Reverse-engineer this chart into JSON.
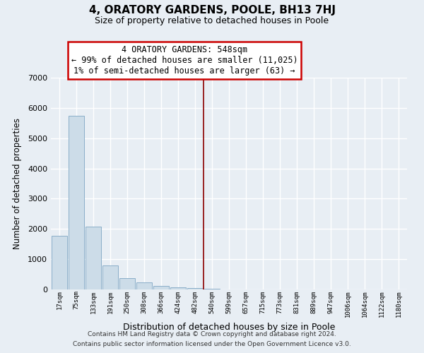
{
  "title": "4, ORATORY GARDENS, POOLE, BH13 7HJ",
  "subtitle": "Size of property relative to detached houses in Poole",
  "xlabel": "Distribution of detached houses by size in Poole",
  "ylabel": "Number of detached properties",
  "bar_color": "#ccdce8",
  "bar_edge_color": "#8aaec8",
  "categories": [
    "17sqm",
    "75sqm",
    "133sqm",
    "191sqm",
    "250sqm",
    "308sqm",
    "366sqm",
    "424sqm",
    "482sqm",
    "540sqm",
    "599sqm",
    "657sqm",
    "715sqm",
    "773sqm",
    "831sqm",
    "889sqm",
    "947sqm",
    "1006sqm",
    "1064sqm",
    "1122sqm",
    "1180sqm"
  ],
  "values": [
    1780,
    5750,
    2070,
    800,
    365,
    235,
    115,
    80,
    55,
    28,
    8,
    0,
    0,
    0,
    0,
    0,
    0,
    0,
    0,
    0,
    0
  ],
  "ylim": [
    0,
    7000
  ],
  "yticks": [
    0,
    1000,
    2000,
    3000,
    4000,
    5000,
    6000,
    7000
  ],
  "vline_pos": 9.0,
  "vline_color": "#8b0000",
  "annotation_title": "4 ORATORY GARDENS: 548sqm",
  "annotation_line1": "← 99% of detached houses are smaller (11,025)",
  "annotation_line2": "1% of semi-detached houses are larger (63) →",
  "annotation_box_facecolor": "#ffffff",
  "annotation_box_edgecolor": "#cc0000",
  "footnote1": "Contains HM Land Registry data © Crown copyright and database right 2024.",
  "footnote2": "Contains public sector information licensed under the Open Government Licence v3.0.",
  "background_color": "#e8eef4",
  "grid_color": "#ffffff"
}
